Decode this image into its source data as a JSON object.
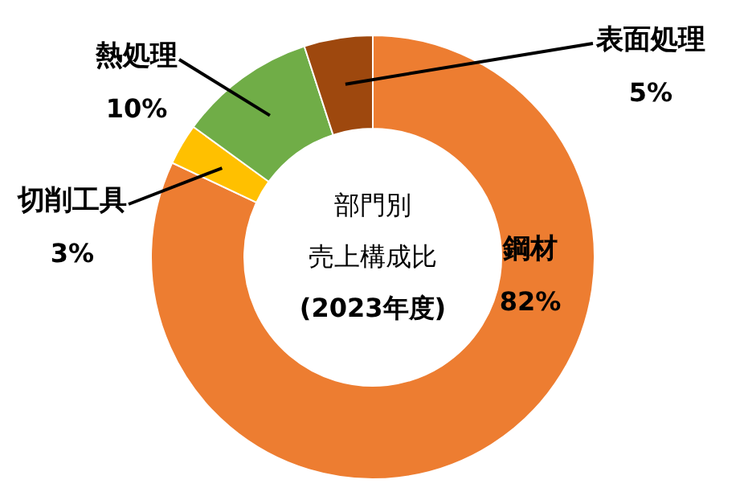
{
  "chart_data": {
    "type": "donut",
    "title": "部門別売上構成比",
    "subtitle": "(2023年度)",
    "categories": [
      "鋼材",
      "切削工具",
      "熱処理",
      "表面処理"
    ],
    "values": [
      82,
      3,
      10,
      5
    ],
    "colors": [
      "#ed7d31",
      "#ffc000",
      "#70ad47",
      "#9e480e"
    ],
    "value_labels": [
      "82%",
      "3%",
      "10%",
      "5%"
    ]
  }
}
